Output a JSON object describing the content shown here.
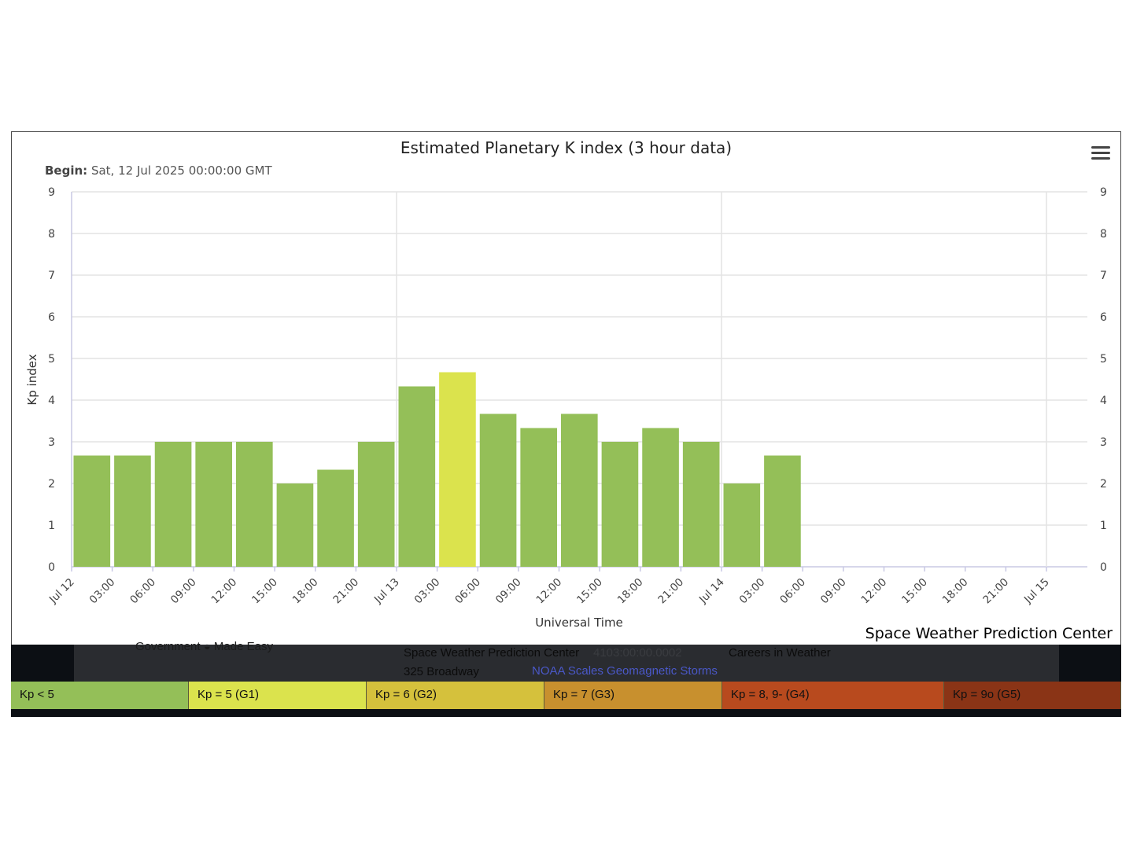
{
  "chart": {
    "title": "Estimated Planetary K index (3 hour data)",
    "begin_label": "Begin:",
    "begin_value": "Sat, 12 Jul 2025 00:00:00 GMT",
    "ylabel": "Kp index",
    "xlabel": "Universal Time",
    "credit": "Space Weather Prediction Center",
    "menu_icon": "hamburger-menu-icon"
  },
  "chart_data": {
    "type": "bar",
    "title": "Estimated Planetary K index (3 hour data)",
    "xlabel": "Universal Time",
    "ylabel": "Kp index",
    "ylim": [
      0,
      9
    ],
    "yticks": [
      0,
      1,
      2,
      3,
      4,
      5,
      6,
      7,
      8,
      9
    ],
    "grid": true,
    "x_tick_labels": [
      "Jul 12",
      "03:00",
      "06:00",
      "09:00",
      "12:00",
      "15:00",
      "18:00",
      "21:00",
      "Jul 13",
      "03:00",
      "06:00",
      "09:00",
      "12:00",
      "15:00",
      "18:00",
      "21:00",
      "Jul 14",
      "03:00",
      "06:00",
      "09:00",
      "12:00",
      "15:00",
      "18:00",
      "21:00",
      "Jul 15"
    ],
    "series": [
      {
        "values": [
          2.67,
          2.67,
          3.0,
          3.0,
          3.0,
          2.0,
          2.33,
          3.0,
          4.33,
          4.67,
          3.67,
          3.33,
          3.67,
          3.0,
          3.33,
          3.0,
          2.0,
          2.67
        ],
        "colors": [
          "#94bf58",
          "#94bf58",
          "#94bf58",
          "#94bf58",
          "#94bf58",
          "#94bf58",
          "#94bf58",
          "#94bf58",
          "#94bf58",
          "#dbe34d",
          "#94bf58",
          "#94bf58",
          "#94bf58",
          "#94bf58",
          "#94bf58",
          "#94bf58",
          "#94bf58",
          "#94bf58"
        ]
      }
    ]
  },
  "footer": {
    "gov_text": "Government ◒ Made Easy",
    "swpc_text": "Space Weather Prediction Center",
    "code_text": "4103:00:00.0002",
    "address_text": "325 Broadway",
    "careers_text": "Careers in Weather",
    "scales_link": "NOAA Scales Geomagnetic Storms"
  },
  "legend": [
    {
      "label": "Kp < 5",
      "color": "#94bf58"
    },
    {
      "label": "Kp = 5 (G1)",
      "color": "#dbe34d"
    },
    {
      "label": "Kp = 6 (G2)",
      "color": "#d5c13c"
    },
    {
      "label": "Kp = 7 (G3)",
      "color": "#c8902e"
    },
    {
      "label": "Kp = 8, 9- (G4)",
      "color": "#b84a1e"
    },
    {
      "label": "Kp = 9o (G5)",
      "color": "#8a3416"
    }
  ]
}
